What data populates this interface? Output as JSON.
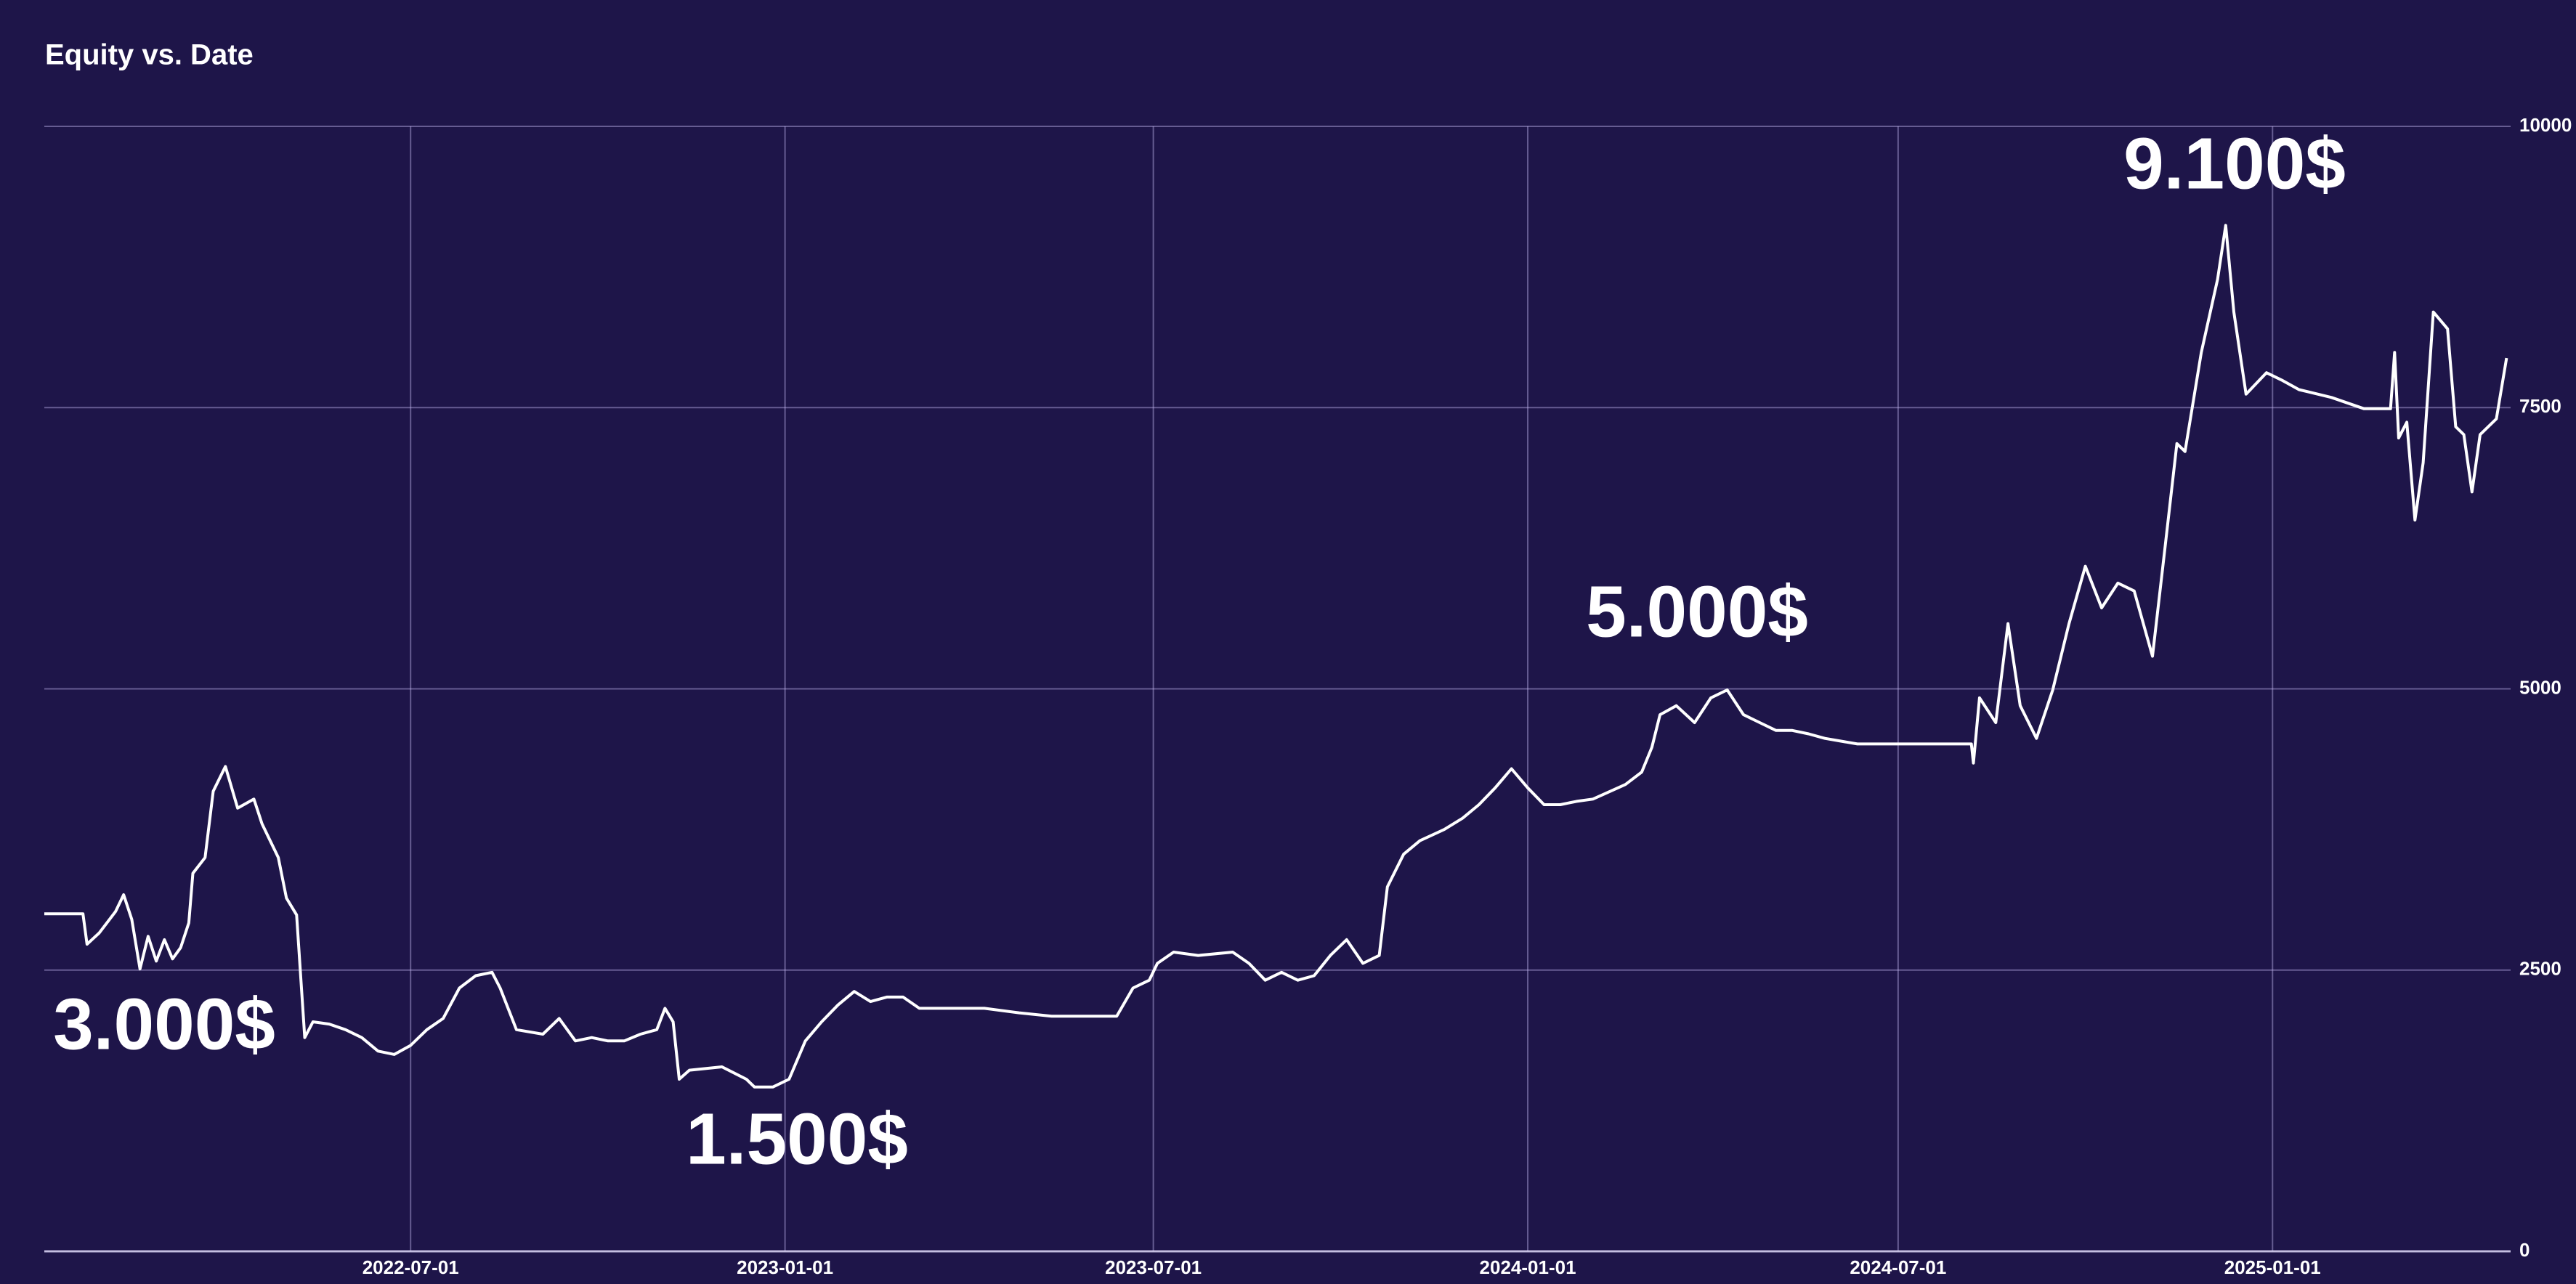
{
  "chart_data": {
    "type": "line",
    "title": "Equity vs. Date",
    "x": [
      "2022-01-02",
      "2022-01-21",
      "2022-01-23",
      "2022-01-29",
      "2022-02-06",
      "2022-02-10",
      "2022-02-14",
      "2022-02-18",
      "2022-02-22",
      "2022-02-26",
      "2022-03-02",
      "2022-03-06",
      "2022-03-10",
      "2022-03-14",
      "2022-03-16",
      "2022-03-22",
      "2022-03-26",
      "2022-04-01",
      "2022-04-07",
      "2022-04-15",
      "2022-04-19",
      "2022-04-23",
      "2022-04-27",
      "2022-05-01",
      "2022-05-06",
      "2022-05-10",
      "2022-05-14",
      "2022-05-22",
      "2022-05-30",
      "2022-06-07",
      "2022-06-15",
      "2022-06-23",
      "2022-07-01",
      "2022-07-09",
      "2022-07-17",
      "2022-07-25",
      "2022-08-02",
      "2022-08-10",
      "2022-08-14",
      "2022-08-22",
      "2022-09-04",
      "2022-09-12",
      "2022-09-20",
      "2022-09-28",
      "2022-10-06",
      "2022-10-14",
      "2022-10-22",
      "2022-10-30",
      "2022-11-03",
      "2022-11-07",
      "2022-11-10",
      "2022-11-15",
      "2022-12-01",
      "2022-12-13",
      "2022-12-17",
      "2022-12-26",
      "2023-01-03",
      "2023-01-11",
      "2023-01-19",
      "2023-01-27",
      "2023-02-04",
      "2023-02-12",
      "2023-02-20",
      "2023-02-28",
      "2023-03-08",
      "2023-03-16",
      "2023-04-09",
      "2023-04-26",
      "2023-05-12",
      "2023-05-28",
      "2023-06-13",
      "2023-06-21",
      "2023-06-29",
      "2023-07-03",
      "2023-07-11",
      "2023-07-23",
      "2023-08-09",
      "2023-08-17",
      "2023-08-25",
      "2023-09-02",
      "2023-09-10",
      "2023-09-18",
      "2023-09-26",
      "2023-10-04",
      "2023-10-12",
      "2023-10-20",
      "2023-10-24",
      "2023-11-01",
      "2023-11-09",
      "2023-11-21",
      "2023-11-30",
      "2023-12-08",
      "2023-12-16",
      "2023-12-24",
      "2024-01-01",
      "2024-01-09",
      "2024-01-17",
      "2024-01-25",
      "2024-02-02",
      "2024-02-18",
      "2024-02-26",
      "2024-03-02",
      "2024-03-06",
      "2024-03-14",
      "2024-03-23",
      "2024-03-31",
      "2024-04-08",
      "2024-04-16",
      "2024-04-24",
      "2024-05-02",
      "2024-05-10",
      "2024-05-18",
      "2024-05-26",
      "2024-06-11",
      "2024-08-06",
      "2024-08-07",
      "2024-08-10",
      "2024-08-18",
      "2024-08-24",
      "2024-08-30",
      "2024-09-07",
      "2024-09-15",
      "2024-09-23",
      "2024-10-01",
      "2024-10-09",
      "2024-10-17",
      "2024-10-25",
      "2024-11-03",
      "2024-11-09",
      "2024-11-15",
      "2024-11-19",
      "2024-11-27",
      "2024-12-05",
      "2024-12-09",
      "2024-12-13",
      "2024-12-19",
      "2024-12-29",
      "2025-01-06",
      "2025-01-14",
      "2025-01-30",
      "2025-02-15",
      "2025-02-28",
      "2025-03-02",
      "2025-03-04",
      "2025-03-08",
      "2025-03-12",
      "2025-03-16",
      "2025-03-21",
      "2025-03-28",
      "2025-04-01",
      "2025-04-05",
      "2025-04-09",
      "2025-04-13",
      "2025-04-21",
      "2025-04-26"
    ],
    "values": [
      3000,
      3000,
      2730,
      2830,
      3020,
      3170,
      2950,
      2510,
      2800,
      2580,
      2770,
      2600,
      2700,
      2920,
      3360,
      3500,
      4090,
      4310,
      3940,
      4020,
      3800,
      3650,
      3500,
      3140,
      2990,
      1900,
      2040,
      2020,
      1970,
      1900,
      1780,
      1750,
      1830,
      1970,
      2070,
      2340,
      2450,
      2480,
      2340,
      1970,
      1930,
      2070,
      1870,
      1900,
      1870,
      1870,
      1930,
      1970,
      2160,
      2040,
      1530,
      1610,
      1640,
      1530,
      1460,
      1460,
      1530,
      1870,
      2040,
      2190,
      2310,
      2220,
      2260,
      2260,
      2160,
      2160,
      2160,
      2120,
      2090,
      2090,
      2090,
      2340,
      2410,
      2560,
      2660,
      2630,
      2660,
      2560,
      2410,
      2480,
      2410,
      2450,
      2630,
      2770,
      2560,
      2630,
      3240,
      3530,
      3650,
      3750,
      3850,
      3970,
      4120,
      4290,
      4120,
      3970,
      3970,
      4000,
      4020,
      4150,
      4260,
      4480,
      4770,
      4850,
      4700,
      4920,
      4990,
      4770,
      4700,
      4630,
      4630,
      4600,
      4560,
      4510,
      4510,
      4340,
      4920,
      4700,
      5580,
      4850,
      4560,
      4990,
      5580,
      6090,
      5720,
      5940,
      5870,
      5290,
      6230,
      7180,
      7110,
      7990,
      8640,
      9120,
      8350,
      7620,
      7810,
      7740,
      7660,
      7590,
      7490,
      7490,
      7990,
      7230,
      7370,
      6500,
      7010,
      8350,
      8200,
      7330,
      7260,
      6750,
      7260,
      7400,
      7940
    ],
    "color": "#ffffff",
    "xlim": [
      "2022-01-02",
      "2025-04-28"
    ],
    "xticks": [
      "2022-07-01",
      "2023-01-01",
      "2023-07-01",
      "2024-01-01",
      "2024-07-01",
      "2025-01-01"
    ],
    "ylim": [
      0,
      10000
    ],
    "yticks": [
      0,
      2500,
      5000,
      7500,
      10000
    ],
    "grid": true,
    "annotations": [
      "3.000$",
      "1.500$",
      "5.000$",
      "9.100$"
    ]
  }
}
